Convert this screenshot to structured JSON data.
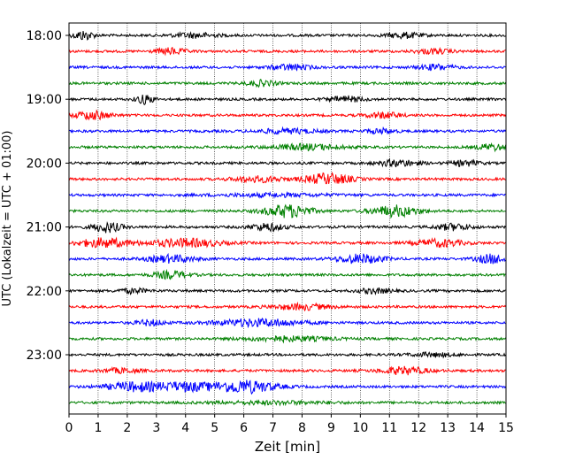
{
  "chart_data": {
    "type": "line",
    "title": "",
    "xlabel": "Zeit  [min]",
    "ylabel": "UTC (Lokalzeit = UTC + 01:00)",
    "xlim": [
      0,
      15
    ],
    "x_ticks": [
      "0",
      "1",
      "2",
      "3",
      "4",
      "5",
      "6",
      "7",
      "8",
      "9",
      "10",
      "11",
      "12",
      "13",
      "14",
      "15"
    ],
    "y_ticks": [
      "18:00",
      "19:00",
      "20:00",
      "21:00",
      "22:00",
      "23:00"
    ],
    "grid": "vertical dotted",
    "colors": [
      "#000000",
      "#ff0000",
      "#0000ff",
      "#008000"
    ],
    "series": [
      {
        "start": "18:00",
        "color": "#000000",
        "bursts": [
          {
            "x": 0.5,
            "amp": 5,
            "w": 0.35
          },
          {
            "x": 11.5,
            "amp": 3,
            "w": 0.6
          },
          {
            "x": 4.3,
            "amp": 2.5,
            "w": 0.8
          }
        ]
      },
      {
        "start": "18:15",
        "color": "#ff0000",
        "bursts": [
          {
            "x": 3.5,
            "amp": 3.5,
            "w": 0.5
          },
          {
            "x": 12.5,
            "amp": 2.5,
            "w": 0.6
          }
        ]
      },
      {
        "start": "18:30",
        "color": "#0000ff",
        "bursts": [
          {
            "x": 7.6,
            "amp": 3,
            "w": 0.7
          },
          {
            "x": 12.6,
            "amp": 3,
            "w": 0.6
          }
        ]
      },
      {
        "start": "18:45",
        "color": "#008000",
        "bursts": [
          {
            "x": 6.6,
            "amp": 3,
            "w": 0.5
          }
        ]
      },
      {
        "start": "19:00",
        "color": "#000000",
        "bursts": [
          {
            "x": 2.6,
            "amp": 5,
            "w": 0.3
          },
          {
            "x": 9.5,
            "amp": 3,
            "w": 0.6
          }
        ]
      },
      {
        "start": "19:15",
        "color": "#ff0000",
        "bursts": [
          {
            "x": 0.8,
            "amp": 4.5,
            "w": 0.6
          },
          {
            "x": 10.8,
            "amp": 3,
            "w": 0.6
          }
        ]
      },
      {
        "start": "19:30",
        "color": "#0000ff",
        "bursts": [
          {
            "x": 7.5,
            "amp": 2.5,
            "w": 1
          },
          {
            "x": 10.7,
            "amp": 2.5,
            "w": 0.5
          }
        ]
      },
      {
        "start": "19:45",
        "color": "#008000",
        "bursts": [
          {
            "x": 8.2,
            "amp": 3,
            "w": 1.2
          },
          {
            "x": 14.5,
            "amp": 3.5,
            "w": 0.5
          }
        ]
      },
      {
        "start": "20:00",
        "color": "#000000",
        "bursts": [
          {
            "x": 11.3,
            "amp": 3.5,
            "w": 0.7
          },
          {
            "x": 13.6,
            "amp": 3,
            "w": 0.5
          }
        ]
      },
      {
        "start": "20:15",
        "color": "#ff0000",
        "bursts": [
          {
            "x": 8.9,
            "amp": 6,
            "w": 0.8
          },
          {
            "x": 6.5,
            "amp": 3,
            "w": 0.9
          }
        ]
      },
      {
        "start": "20:30",
        "color": "#0000ff",
        "bursts": [
          {
            "x": 7,
            "amp": 1.5,
            "w": 2
          }
        ]
      },
      {
        "start": "20:45",
        "color": "#008000",
        "bursts": [
          {
            "x": 7.5,
            "amp": 7,
            "w": 0.8
          },
          {
            "x": 11.2,
            "amp": 6,
            "w": 0.8
          }
        ]
      },
      {
        "start": "21:00",
        "color": "#000000",
        "bursts": [
          {
            "x": 1.3,
            "amp": 5.5,
            "w": 0.5
          },
          {
            "x": 6.8,
            "amp": 4,
            "w": 0.6
          },
          {
            "x": 13.2,
            "amp": 3.5,
            "w": 0.6
          }
        ]
      },
      {
        "start": "21:15",
        "color": "#ff0000",
        "bursts": [
          {
            "x": 1.2,
            "amp": 5,
            "w": 0.9
          },
          {
            "x": 4,
            "amp": 4.5,
            "w": 1.2
          },
          {
            "x": 12.7,
            "amp": 4,
            "w": 0.8
          }
        ]
      },
      {
        "start": "21:30",
        "color": "#0000ff",
        "bursts": [
          {
            "x": 3.5,
            "amp": 4,
            "w": 0.8
          },
          {
            "x": 10,
            "amp": 5,
            "w": 0.8
          },
          {
            "x": 14.5,
            "amp": 5,
            "w": 0.5
          }
        ]
      },
      {
        "start": "21:45",
        "color": "#008000",
        "bursts": [
          {
            "x": 3.5,
            "amp": 4,
            "w": 0.6
          }
        ]
      },
      {
        "start": "22:00",
        "color": "#000000",
        "bursts": [
          {
            "x": 2.2,
            "amp": 2.5,
            "w": 0.5
          },
          {
            "x": 10.5,
            "amp": 2.5,
            "w": 0.6
          }
        ]
      },
      {
        "start": "22:15",
        "color": "#ff0000",
        "bursts": [
          {
            "x": 8,
            "amp": 3,
            "w": 1
          }
        ]
      },
      {
        "start": "22:30",
        "color": "#0000ff",
        "bursts": [
          {
            "x": 6.5,
            "amp": 4,
            "w": 1.5
          },
          {
            "x": 2.8,
            "amp": 3,
            "w": 0.5
          }
        ]
      },
      {
        "start": "22:45",
        "color": "#008000",
        "bursts": [
          {
            "x": 7.5,
            "amp": 2.5,
            "w": 1.5
          }
        ]
      },
      {
        "start": "23:00",
        "color": "#000000",
        "bursts": [
          {
            "x": 12.5,
            "amp": 2,
            "w": 0.8
          }
        ]
      },
      {
        "start": "23:15",
        "color": "#ff0000",
        "bursts": [
          {
            "x": 11.5,
            "amp": 4,
            "w": 0.8
          },
          {
            "x": 1.8,
            "amp": 2.5,
            "w": 0.6
          }
        ]
      },
      {
        "start": "23:30",
        "color": "#0000ff",
        "bursts": [
          {
            "x": 6,
            "amp": 7,
            "w": 1.1
          },
          {
            "x": 2.3,
            "amp": 5,
            "w": 1
          },
          {
            "x": 4,
            "amp": 4.5,
            "w": 0.8
          }
        ]
      },
      {
        "start": "23:45",
        "color": "#008000",
        "bursts": [
          {
            "x": 7,
            "amp": 1.5,
            "w": 2
          }
        ]
      }
    ]
  }
}
